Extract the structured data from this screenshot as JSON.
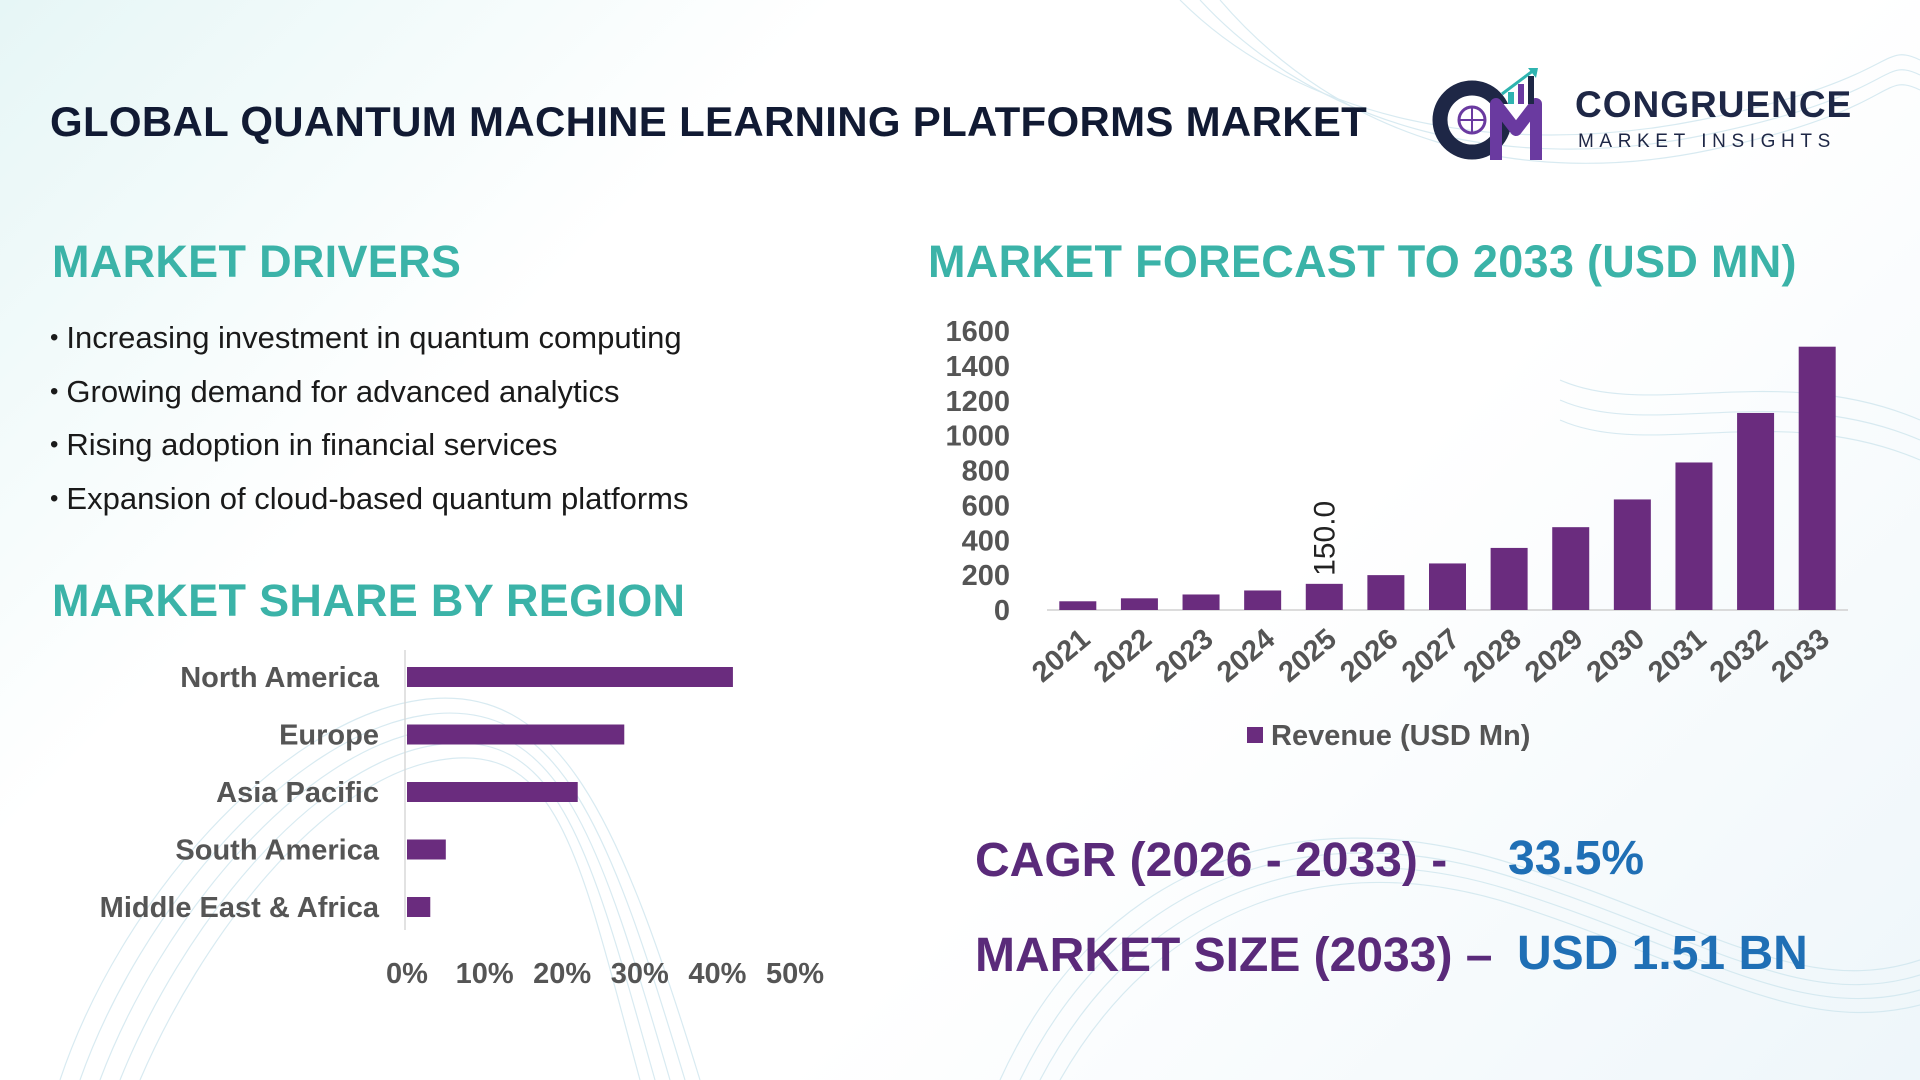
{
  "title": "GLOBAL QUANTUM MACHINE LEARNING PLATFORMS MARKET",
  "logo": {
    "name": "CONGRUENCE",
    "subtitle": "MARKET INSIGHTS",
    "colors": {
      "navy": "#1e2746",
      "purple": "#6a3aa0",
      "teal": "#2fb4b0"
    }
  },
  "drivers": {
    "heading": "MARKET DRIVERS",
    "items": [
      "Increasing investment in quantum computing",
      "Growing demand for advanced analytics",
      "Rising adoption in financial services",
      "Expansion of cloud-based quantum platforms"
    ]
  },
  "region": {
    "heading": "MARKET SHARE BY REGION"
  },
  "forecast": {
    "heading": "MARKET FORECAST TO 2033 (USD MN)"
  },
  "kpis": {
    "cagr_label": "CAGR (2026 - 2033) -",
    "cagr_value": "33.5%",
    "size_label": "MARKET SIZE (2033) –",
    "size_value": "USD 1.51 BN"
  },
  "colors": {
    "bar": "#6a2c7e",
    "heading_teal": "#3bb3a8",
    "kpi_purple": "#5a2a7a",
    "kpi_blue": "#1f6fb5",
    "axis_text": "#555555"
  },
  "chart_data": [
    {
      "type": "bar",
      "orientation": "vertical",
      "categories": [
        "2021",
        "2022",
        "2023",
        "2024",
        "2025",
        "2026",
        "2027",
        "2028",
        "2029",
        "2030",
        "2031",
        "2032",
        "2033"
      ],
      "series": [
        {
          "name": "Revenue (USD Mn)",
          "values": [
            50,
            67,
            89,
            112,
            150,
            200,
            267,
            356,
            475,
            634,
            846,
            1130,
            1510
          ]
        }
      ],
      "data_labels": [
        {
          "category": "2025",
          "text": "150.0"
        }
      ],
      "ylim": [
        0,
        1600
      ],
      "yticks": [
        "0",
        "200",
        "400",
        "600",
        "800",
        "1000",
        "1200",
        "1400",
        "1600"
      ],
      "grid": false,
      "legend": "bottom-center",
      "xtick_rotation": "diagonal"
    },
    {
      "type": "bar",
      "orientation": "horizontal",
      "categories": [
        "North America",
        "Europe",
        "Asia Pacific",
        "South America",
        "Middle East & Africa"
      ],
      "values": [
        42,
        28,
        22,
        5,
        3
      ],
      "unit": "%",
      "xlim": [
        0,
        50
      ],
      "xticks": [
        "0%",
        "10%",
        "20%",
        "30%",
        "40%",
        "50%"
      ],
      "grid": false
    }
  ]
}
